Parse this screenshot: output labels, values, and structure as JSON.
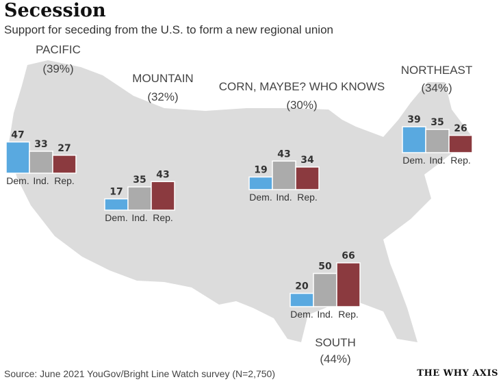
{
  "title": "Secession",
  "subtitle": "Support for seceding from the U.S. to form a new regional union",
  "source": "Source: June 2021 YouGov/Bright Line Watch survey (N=2,750)",
  "brand": "THE WHY AXIS",
  "colors": {
    "dem": "#59a9e0",
    "ind": "#ababab",
    "rep": "#8b3a3f",
    "map": "#dcdcdc"
  },
  "chart_data": {
    "type": "bar",
    "categories": [
      "Dem.",
      "Ind.",
      "Rep."
    ],
    "regions": [
      {
        "name": "PACIFIC",
        "percent": "(39%)",
        "values": [
          47,
          33,
          27
        ]
      },
      {
        "name": "MOUNTAIN",
        "percent": "(32%)",
        "values": [
          17,
          35,
          43
        ]
      },
      {
        "name": "CORN, MAYBE? WHO KNOWS",
        "percent": "(30%)",
        "values": [
          19,
          43,
          34
        ]
      },
      {
        "name": "NORTHEAST",
        "percent": "(34%)",
        "values": [
          39,
          35,
          26
        ]
      },
      {
        "name": "SOUTH",
        "percent": "(44%)",
        "values": [
          20,
          50,
          66
        ]
      }
    ]
  }
}
